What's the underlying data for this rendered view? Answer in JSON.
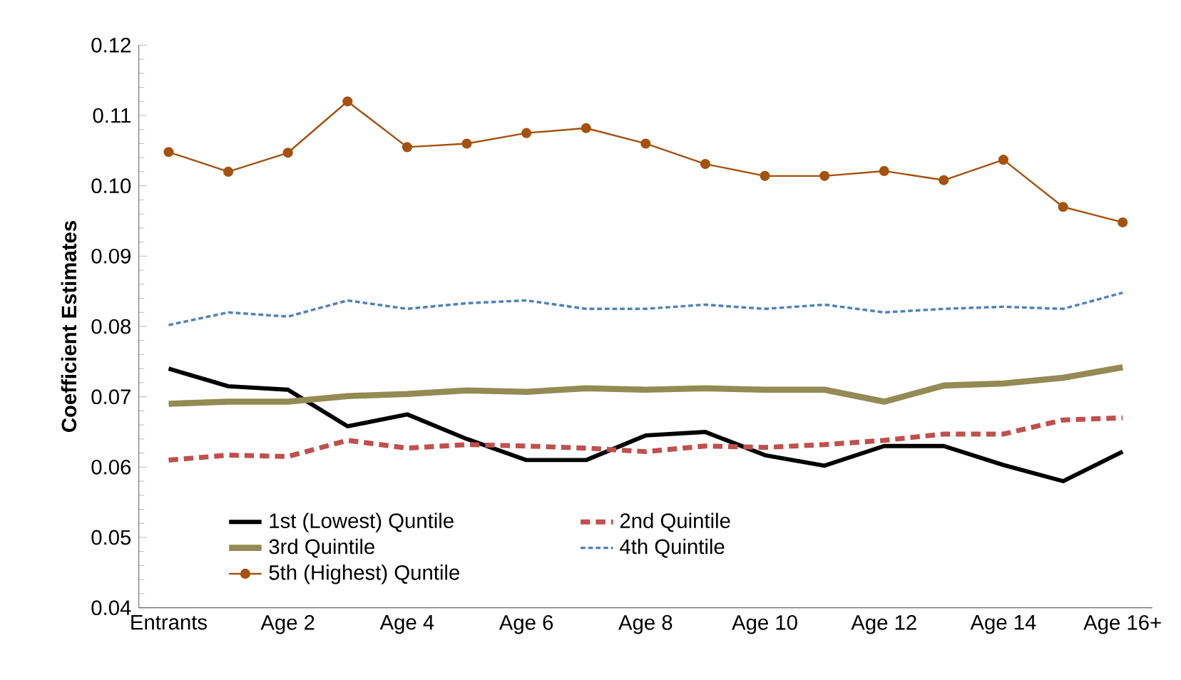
{
  "chart_data": {
    "type": "line",
    "ylabel": "Coefficient Estimates",
    "categories": [
      "Entrants",
      null,
      "Age 2",
      null,
      "Age 4",
      null,
      "Age 6",
      null,
      "Age 8",
      null,
      "Age 10",
      null,
      "Age 12",
      null,
      "Age 14",
      null,
      "Age 16+"
    ],
    "ylim": [
      0.04,
      0.12
    ],
    "yticks": [
      0.04,
      0.05,
      0.06,
      0.07,
      0.08,
      0.09,
      {
        "value": 0.1,
        "label": "0.10"
      },
      0.11,
      0.12
    ],
    "legend": "bottom",
    "grid": false,
    "series": [
      {
        "name": "1st (Lowest) Quntile",
        "color": "#000000",
        "line_style": "solid",
        "marker": "none",
        "values": [
          0.074,
          0.0715,
          0.071,
          0.0658,
          0.0675,
          0.064,
          0.061,
          0.061,
          0.0645,
          0.065,
          0.0617,
          0.0602,
          0.063,
          0.063,
          0.0603,
          0.058,
          0.0622
        ]
      },
      {
        "name": "2nd Quintile",
        "color": "#c0504d",
        "line_style": "dashed",
        "marker": "none",
        "values": [
          0.061,
          0.0617,
          0.0615,
          0.0638,
          0.0627,
          0.0632,
          0.063,
          0.0627,
          0.0622,
          0.063,
          0.0628,
          0.0632,
          0.0638,
          0.0647,
          0.0647,
          0.0667,
          0.067
        ]
      },
      {
        "name": "3rd Quintile",
        "color": "#948a54",
        "line_style": "solid",
        "marker": "none",
        "values": [
          0.069,
          0.0693,
          0.0693,
          0.0701,
          0.0704,
          0.0709,
          0.0707,
          0.0712,
          0.071,
          0.0712,
          0.071,
          0.071,
          0.0693,
          0.0716,
          0.0719,
          0.0727,
          0.0742
        ]
      },
      {
        "name": "4th Quintile",
        "color": "#4f81bd",
        "line_style": "dotted",
        "marker": "none",
        "values": [
          0.0802,
          0.082,
          0.0814,
          0.0837,
          0.0825,
          0.0833,
          0.0837,
          0.0825,
          0.0825,
          0.0831,
          0.0825,
          0.0831,
          0.082,
          0.0825,
          0.0828,
          0.0825,
          0.0848
        ]
      },
      {
        "name": "5th (Highest) Quntile",
        "color": "#a5520f",
        "line_style": "solid",
        "marker": "circle",
        "values": [
          0.1048,
          0.102,
          0.1047,
          0.112,
          0.1055,
          0.106,
          0.1075,
          0.1082,
          0.106,
          0.1031,
          0.1014,
          0.1014,
          0.1021,
          0.1008,
          0.1037,
          0.097,
          0.0948
        ]
      }
    ]
  }
}
